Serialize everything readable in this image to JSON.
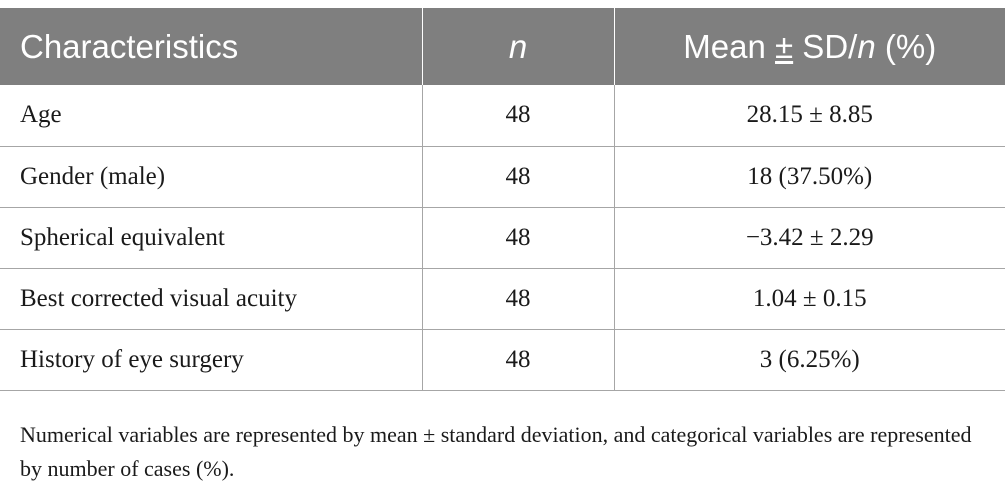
{
  "table": {
    "header": {
      "characteristics": "Characteristics",
      "n": "n",
      "stat_prefix": "Mean ",
      "stat_pm": "±",
      "stat_mid": " SD/",
      "stat_n": "n",
      "stat_suffix": " (%)"
    },
    "rows": [
      {
        "characteristic": "Age",
        "n": "48",
        "value": "28.15 ± 8.85"
      },
      {
        "characteristic": "Gender (male)",
        "n": "48",
        "value": "18 (37.50%)"
      },
      {
        "characteristic": "Spherical equivalent",
        "n": "48",
        "value": "−3.42 ± 2.29"
      },
      {
        "characteristic": "Best corrected visual acuity",
        "n": "48",
        "value": "1.04 ± 0.15"
      },
      {
        "characteristic": "History of eye surgery",
        "n": "48",
        "value": "3 (6.25%)"
      }
    ]
  },
  "footnote": "Numerical variables are represented by mean ± standard deviation, and categorical variables are represented by number of cases (%).",
  "colors": {
    "header_bg": "#7f7f7f",
    "header_text": "#ffffff",
    "rule": "#a6a6a6",
    "body_text": "#1a1a1a"
  }
}
